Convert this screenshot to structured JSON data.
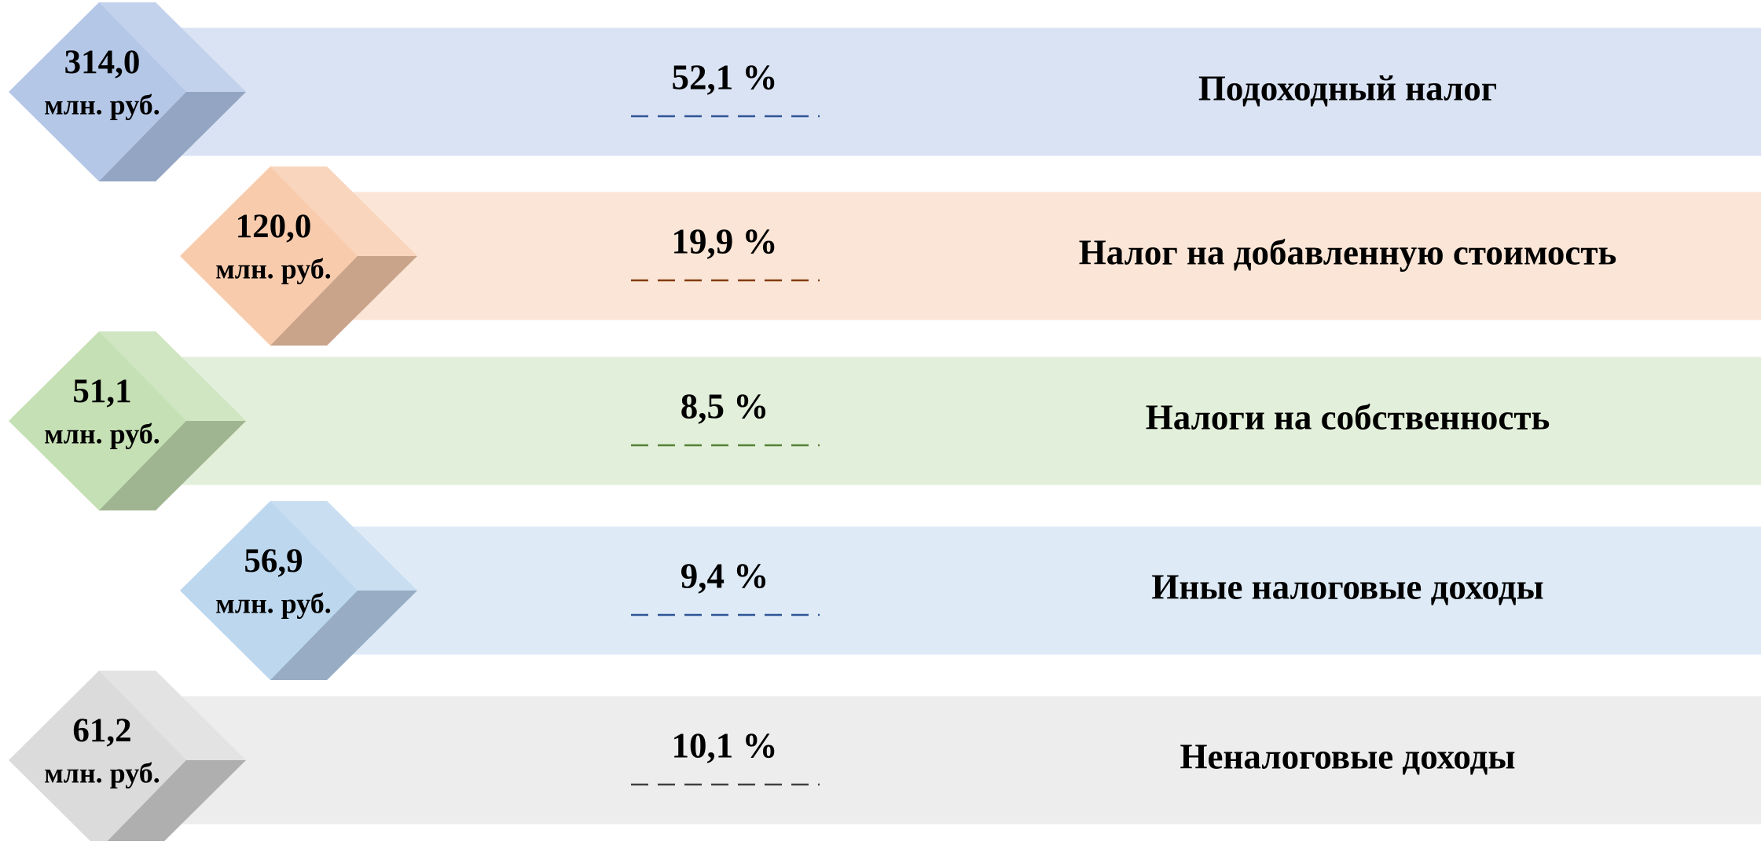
{
  "items": [
    {
      "amount": "314,0",
      "unit": "млн. руб.",
      "share": "52,1 %",
      "name": "Подоходный налог"
    },
    {
      "amount": "120,0",
      "unit": "млн. руб.",
      "share": "19,9 %",
      "name": "Налог на добавленную стоимость"
    },
    {
      "amount": "51,1",
      "unit": "млн. руб.",
      "share": "8,5 %",
      "name": "Налоги на собственность"
    },
    {
      "amount": "56,9",
      "unit": "млн. руб.",
      "share": "9,4 %",
      "name": "Иные налоговые доходы"
    },
    {
      "amount": "61,2",
      "unit": "млн. руб.",
      "share": "10,1 %",
      "name": "Неналоговые доходы"
    }
  ]
}
